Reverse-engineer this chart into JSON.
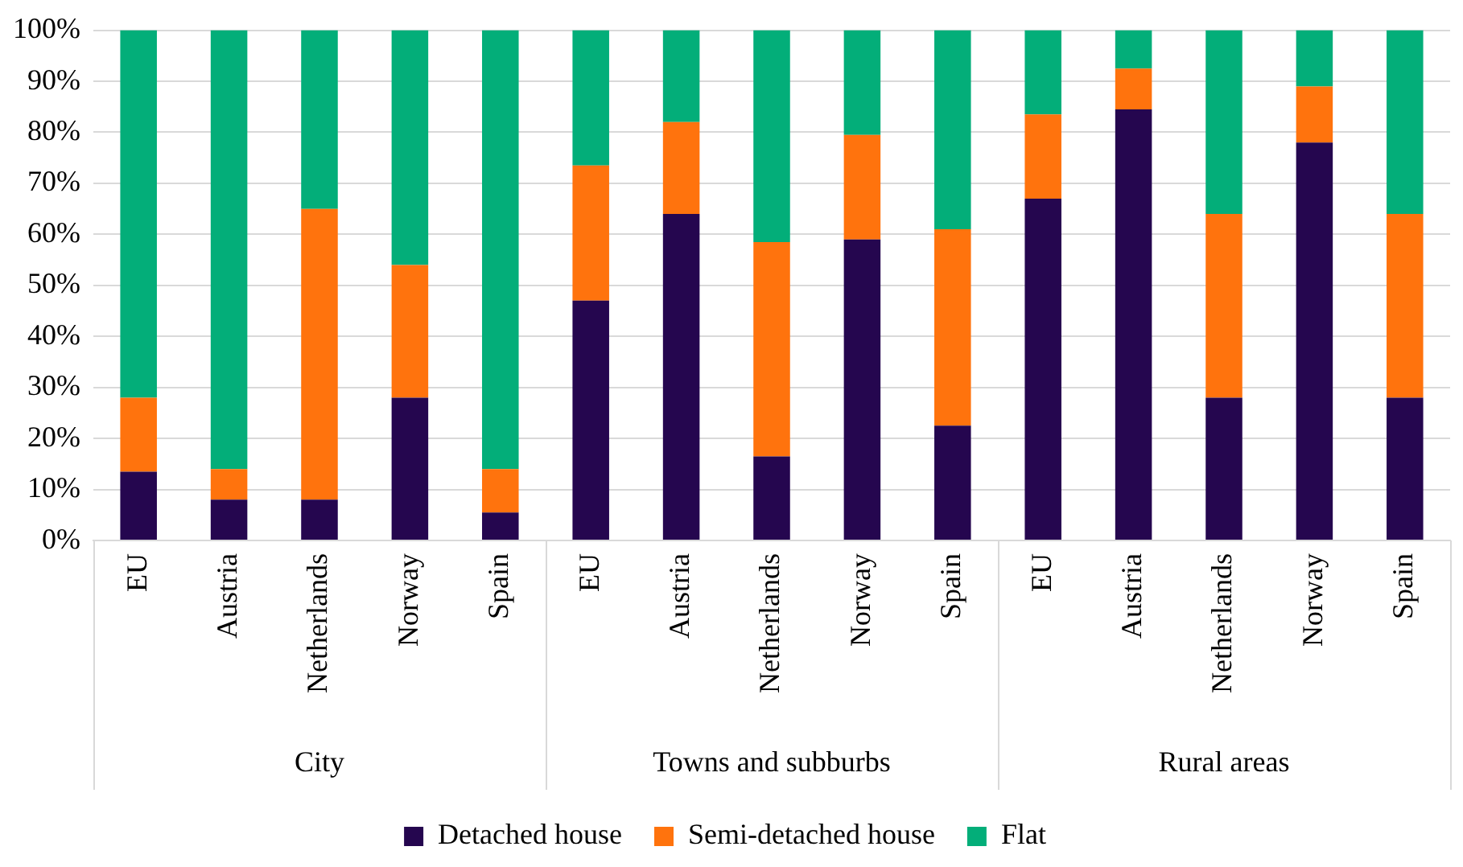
{
  "chart_data": {
    "type": "bar",
    "stacked": true,
    "categories": [
      "EU",
      "Austria",
      "Netherlands",
      "Norway",
      "Spain",
      "EU",
      "Austria",
      "Netherlands",
      "Norway",
      "Spain",
      "EU",
      "Austria",
      "Netherlands",
      "Norway",
      "Spain"
    ],
    "series": [
      {
        "name": "Detached house",
        "color": "#25064f",
        "values": [
          13.5,
          8,
          8,
          28,
          5.5,
          47,
          64,
          16.5,
          59,
          22.5,
          67,
          84.5,
          28,
          78,
          28
        ]
      },
      {
        "name": "Semi-detached house",
        "color": "#ff730d",
        "values": [
          14.5,
          6,
          57,
          26,
          8.5,
          26.5,
          18,
          42,
          20.5,
          38.5,
          16.5,
          8,
          36,
          11,
          36
        ]
      },
      {
        "name": "Flat",
        "color": "#03ae79",
        "values": [
          72,
          86,
          35,
          46,
          86,
          26.5,
          18,
          41.5,
          20.5,
          39,
          16.5,
          7.5,
          36,
          11,
          36
        ]
      }
    ],
    "ylim": [
      0,
      100
    ],
    "yticks": [
      {
        "value": 0,
        "label": "0%"
      },
      {
        "value": 10,
        "label": "10%"
      },
      {
        "value": 20,
        "label": "20%"
      },
      {
        "value": 30,
        "label": "30%"
      },
      {
        "value": 40,
        "label": "40%"
      },
      {
        "value": 50,
        "label": "50%"
      },
      {
        "value": 60,
        "label": "60%"
      },
      {
        "value": 70,
        "label": "70%"
      },
      {
        "value": 80,
        "label": "80%"
      },
      {
        "value": 90,
        "label": "90%"
      },
      {
        "value": 100,
        "label": "100%"
      }
    ],
    "annotations": [
      "City",
      "Towns and subburbs",
      "Rural areas"
    ],
    "grid": "y",
    "legend": "bottom"
  }
}
